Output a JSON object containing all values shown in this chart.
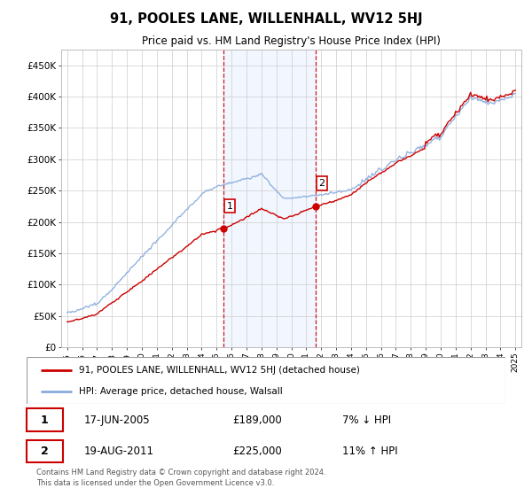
{
  "title": "91, POOLES LANE, WILLENHALL, WV12 5HJ",
  "subtitle": "Price paid vs. HM Land Registry's House Price Index (HPI)",
  "ylim": [
    0,
    475000
  ],
  "yticks": [
    0,
    50000,
    100000,
    150000,
    200000,
    250000,
    300000,
    350000,
    400000,
    450000
  ],
  "ytick_labels": [
    "£0",
    "£50K",
    "£100K",
    "£150K",
    "£200K",
    "£250K",
    "£300K",
    "£350K",
    "£400K",
    "£450K"
  ],
  "hpi_color": "#88aadd",
  "price_color": "#cc0000",
  "vline_color": "#cc0000",
  "point1_year": 2005.46,
  "point1_price": 189000,
  "point2_year": 2011.63,
  "point2_price": 225000,
  "legend_line1": "91, POOLES LANE, WILLENHALL, WV12 5HJ (detached house)",
  "legend_line2": "HPI: Average price, detached house, Walsall",
  "table_row1": [
    "1",
    "17-JUN-2005",
    "£189,000",
    "7% ↓ HPI"
  ],
  "table_row2": [
    "2",
    "19-AUG-2011",
    "£225,000",
    "11% ↑ HPI"
  ],
  "footnote": "Contains HM Land Registry data © Crown copyright and database right 2024.\nThis data is licensed under the Open Government Licence v3.0.",
  "background_color": "#ffffff",
  "grid_color": "#cccccc"
}
